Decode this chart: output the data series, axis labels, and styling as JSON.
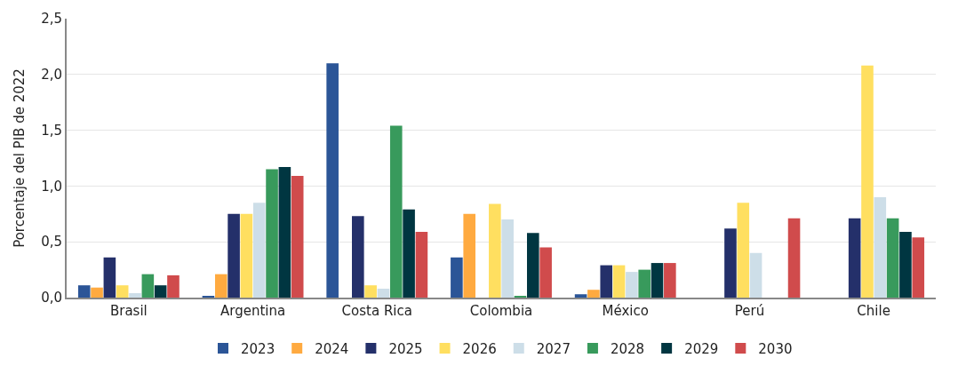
{
  "chart_data": {
    "type": "bar",
    "ylabel": "Porcentaje del PIB de 2022",
    "categories": [
      "Brasil",
      "Argentina",
      "Costa Rica",
      "Colombia",
      "México",
      "Perú",
      "Chile"
    ],
    "series": [
      {
        "name": "2023",
        "color": "#2b5597",
        "values": [
          0.11,
          0.01,
          2.1,
          0.36,
          0.03,
          null,
          null
        ]
      },
      {
        "name": "2024",
        "color": "#ffaa40",
        "values": [
          0.09,
          0.21,
          null,
          0.75,
          0.07,
          null,
          null
        ]
      },
      {
        "name": "2025",
        "color": "#24306a",
        "values": [
          0.36,
          0.75,
          0.73,
          null,
          0.29,
          0.62,
          0.71
        ]
      },
      {
        "name": "2026",
        "color": "#ffdf60",
        "values": [
          0.11,
          0.75,
          0.11,
          0.84,
          0.29,
          0.85,
          2.08
        ]
      },
      {
        "name": "2027",
        "color": "#cddee8",
        "values": [
          0.04,
          0.85,
          0.08,
          0.7,
          0.23,
          0.4,
          0.9
        ]
      },
      {
        "name": "2028",
        "color": "#389a5c",
        "values": [
          0.21,
          1.15,
          1.54,
          0.01,
          0.25,
          null,
          0.71
        ]
      },
      {
        "name": "2029",
        "color": "#003641",
        "values": [
          0.11,
          1.17,
          0.79,
          0.58,
          0.31,
          null,
          0.59
        ]
      },
      {
        "name": "2030",
        "color": "#d04b4c",
        "values": [
          0.2,
          1.09,
          0.59,
          0.45,
          0.31,
          0.71,
          0.54
        ]
      }
    ],
    "ylim": [
      0,
      2.5
    ],
    "yticks": [
      {
        "value": 0,
        "label": "0,0"
      },
      {
        "value": 0.5,
        "label": "0,5"
      },
      {
        "value": 1,
        "label": "1,0"
      },
      {
        "value": 1.5,
        "label": "1,5"
      },
      {
        "value": 2,
        "label": "2,0"
      },
      {
        "value": 2.5,
        "label": "2,5"
      }
    ],
    "grid": "y",
    "legend": "bottom"
  }
}
